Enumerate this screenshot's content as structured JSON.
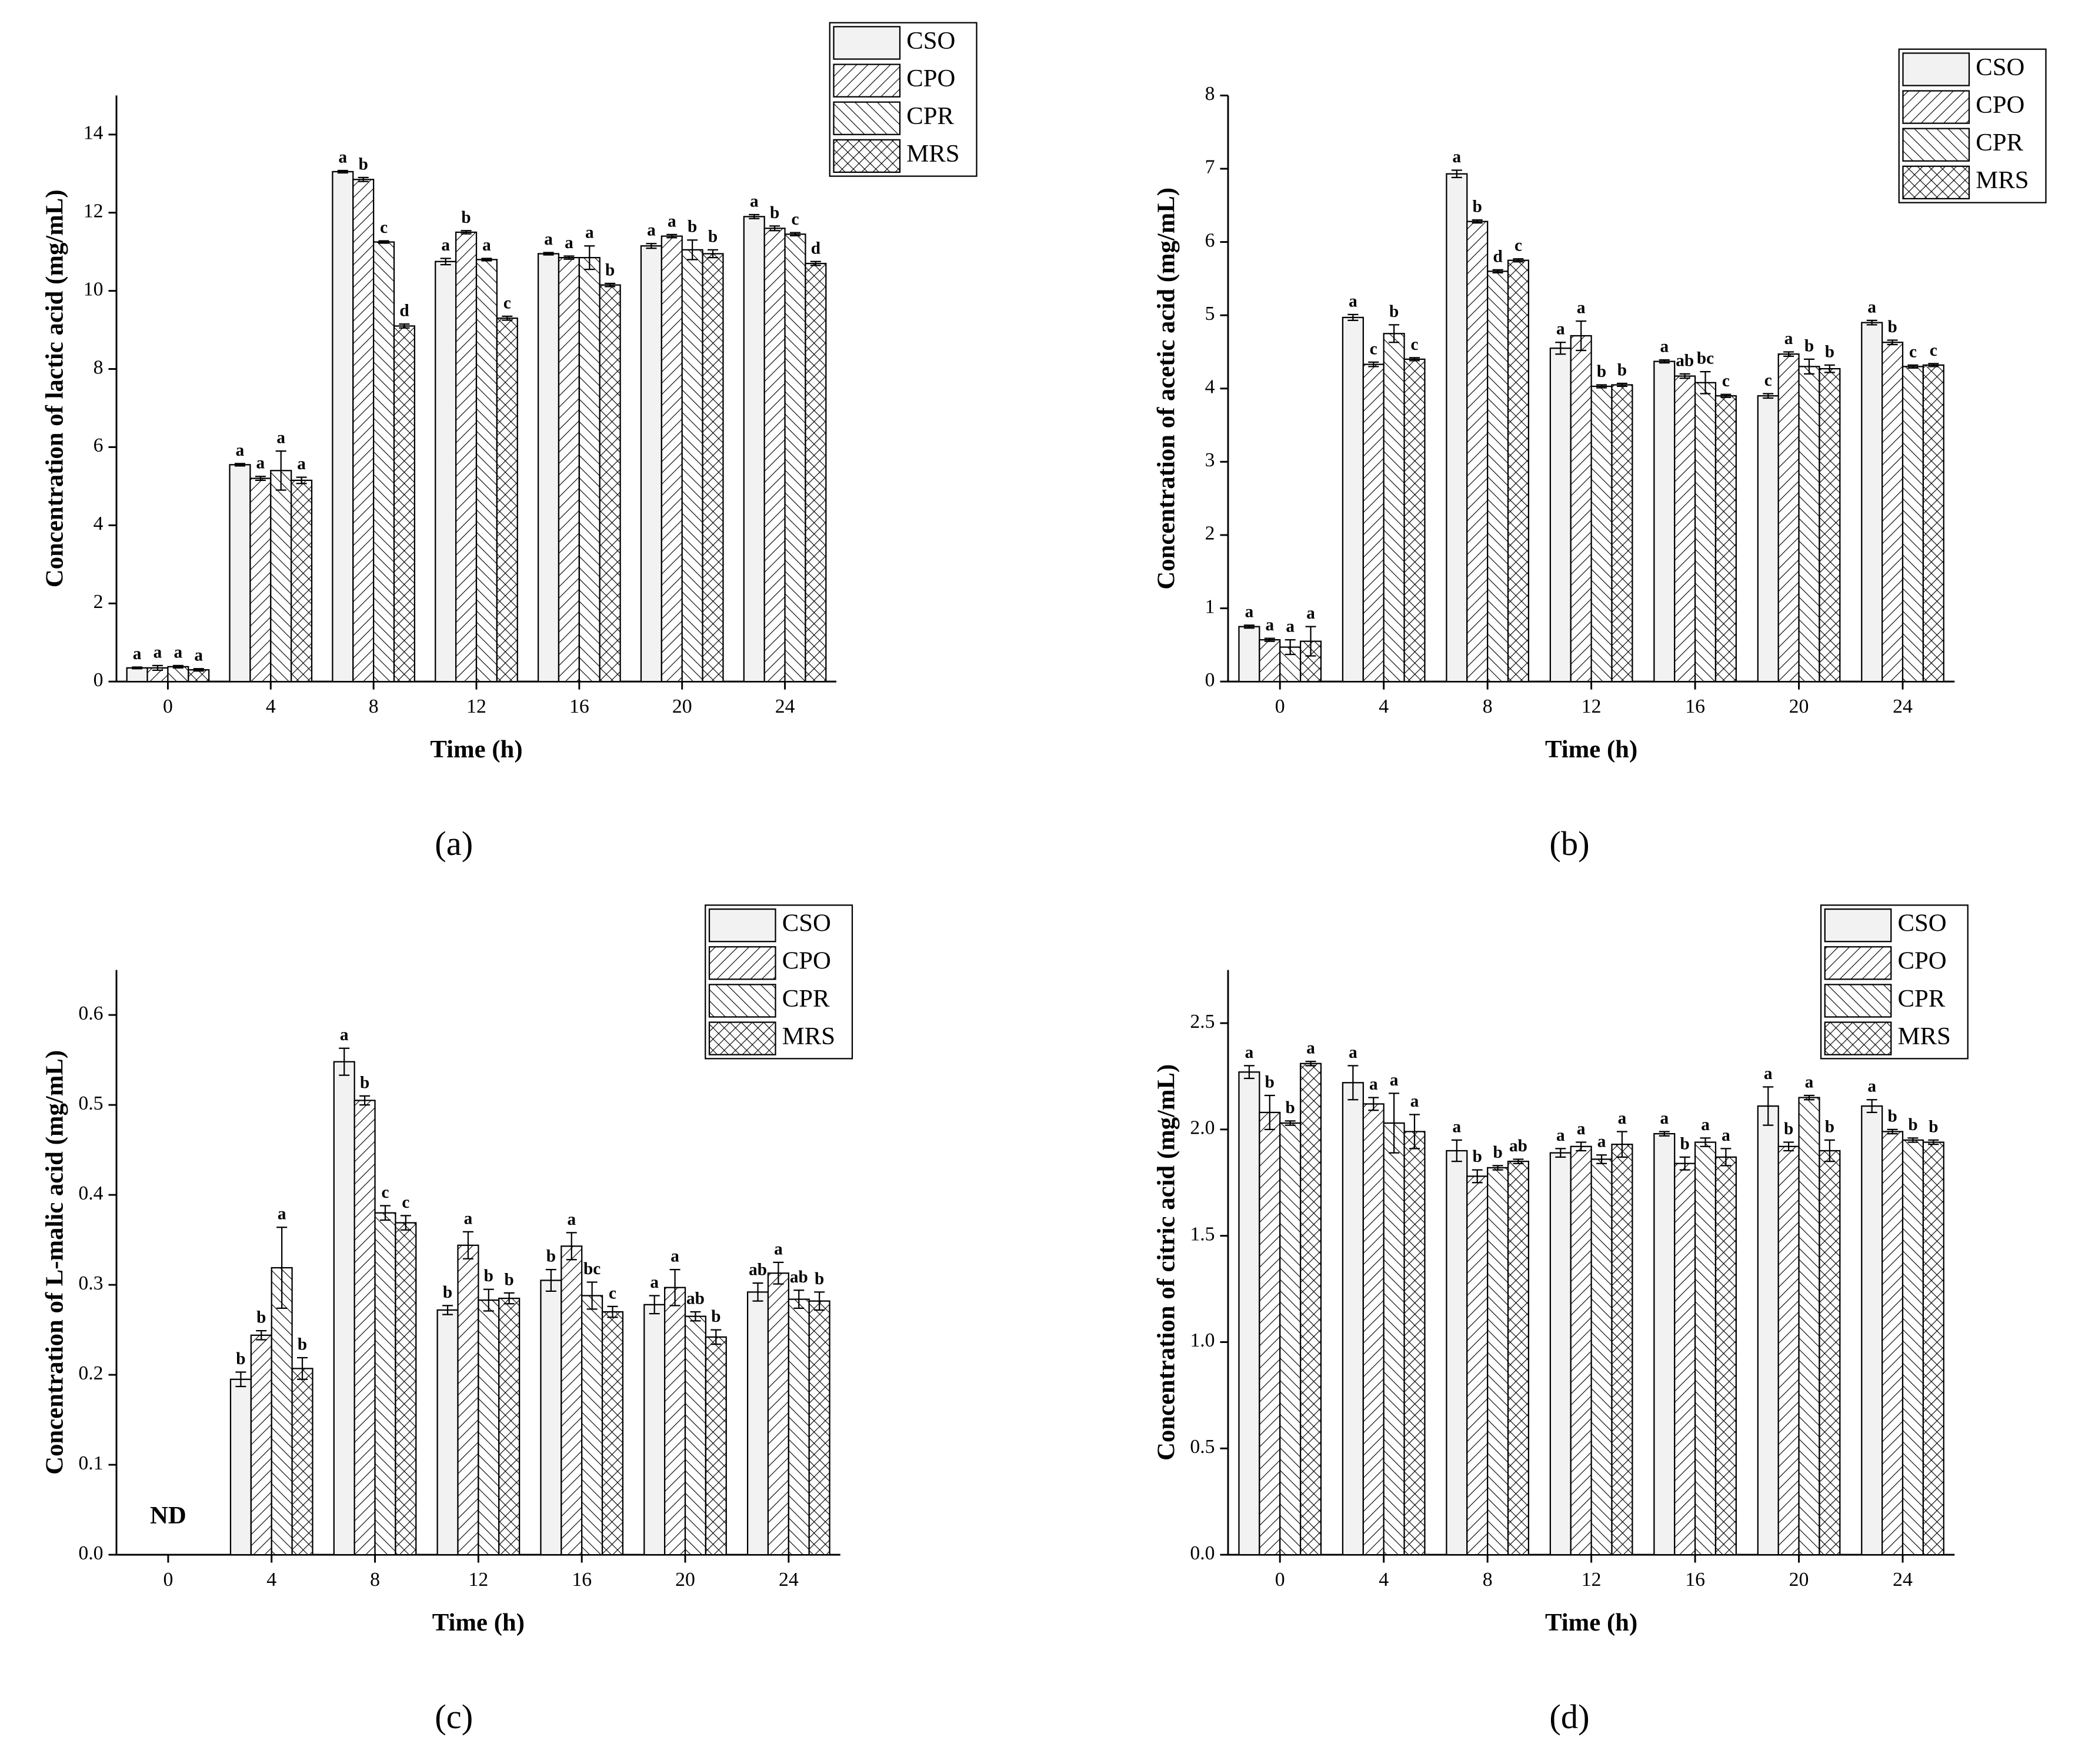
{
  "chart_data": [
    {
      "type": "bar",
      "caption": "(a)",
      "xlabel": "Time (h)",
      "ylabel": "Concentration of lactic acid (mg/mL)",
      "categories": [
        "0",
        "4",
        "8",
        "12",
        "16",
        "20",
        "24"
      ],
      "ylim": [
        0,
        15
      ],
      "yticks": [
        0,
        2,
        4,
        6,
        8,
        10,
        12,
        14
      ],
      "legend": "upper right",
      "series": [
        {
          "name": "CSO",
          "pattern": "plain",
          "color": "#f2f2f2",
          "values": [
            0.35,
            5.55,
            13.05,
            10.75,
            10.95,
            11.15,
            11.9
          ],
          "errors": [
            0.02,
            0.03,
            0.03,
            0.08,
            0.03,
            0.06,
            0.05
          ],
          "letters": [
            "a",
            "a",
            "a",
            "a",
            "a",
            "a",
            "a"
          ]
        },
        {
          "name": "CPO",
          "pattern": "forward",
          "color": "#ffffff",
          "values": [
            0.35,
            5.2,
            12.85,
            11.5,
            10.85,
            11.4,
            11.6
          ],
          "errors": [
            0.06,
            0.05,
            0.05,
            0.04,
            0.04,
            0.04,
            0.06
          ],
          "letters": [
            "a",
            "a",
            "b",
            "b",
            "a",
            "a",
            "b"
          ]
        },
        {
          "name": "CPR",
          "pattern": "backward",
          "color": "#ffffff",
          "values": [
            0.38,
            5.4,
            11.25,
            10.8,
            10.85,
            11.05,
            11.45
          ],
          "errors": [
            0.03,
            0.5,
            0.03,
            0.03,
            0.3,
            0.25,
            0.04
          ],
          "letters": [
            "a",
            "a",
            "c",
            "a",
            "a",
            "b",
            "c"
          ]
        },
        {
          "name": "MRS",
          "pattern": "cross",
          "color": "#ffffff",
          "values": [
            0.3,
            5.15,
            9.1,
            9.3,
            10.15,
            10.95,
            10.7
          ],
          "errors": [
            0.03,
            0.08,
            0.05,
            0.05,
            0.04,
            0.1,
            0.05
          ],
          "letters": [
            "a",
            "a",
            "d",
            "c",
            "b",
            "b",
            "d"
          ]
        }
      ]
    },
    {
      "type": "bar",
      "caption": "(b)",
      "xlabel": "Time (h)",
      "ylabel": "Concentration of acetic acid (mg/mL)",
      "categories": [
        "0",
        "4",
        "8",
        "12",
        "16",
        "20",
        "24"
      ],
      "ylim": [
        0,
        8
      ],
      "yticks": [
        0,
        1,
        2,
        3,
        4,
        5,
        6,
        7,
        8
      ],
      "legend": "upper right",
      "series": [
        {
          "name": "CSO",
          "pattern": "plain",
          "color": "#f2f2f2",
          "values": [
            0.75,
            4.97,
            6.93,
            4.55,
            4.37,
            3.9,
            4.9
          ],
          "errors": [
            0.02,
            0.04,
            0.05,
            0.08,
            0.02,
            0.03,
            0.03
          ],
          "letters": [
            "a",
            "a",
            "a",
            "a",
            "a",
            "c",
            "a"
          ]
        },
        {
          "name": "CPO",
          "pattern": "forward",
          "color": "#ffffff",
          "values": [
            0.57,
            4.33,
            6.28,
            4.72,
            4.17,
            4.47,
            4.63
          ],
          "errors": [
            0.02,
            0.03,
            0.02,
            0.2,
            0.03,
            0.03,
            0.03
          ],
          "letters": [
            "a",
            "c",
            "b",
            "a",
            "ab",
            "a",
            "b"
          ]
        },
        {
          "name": "CPR",
          "pattern": "backward",
          "color": "#ffffff",
          "values": [
            0.47,
            4.75,
            5.6,
            4.03,
            4.08,
            4.3,
            4.3
          ],
          "errors": [
            0.1,
            0.12,
            0.02,
            0.02,
            0.15,
            0.1,
            0.02
          ],
          "letters": [
            "a",
            "b",
            "d",
            "b",
            "bc",
            "b",
            "c"
          ]
        },
        {
          "name": "MRS",
          "pattern": "cross",
          "color": "#ffffff",
          "values": [
            0.55,
            4.4,
            5.75,
            4.05,
            3.9,
            4.27,
            4.32
          ],
          "errors": [
            0.2,
            0.02,
            0.02,
            0.02,
            0.02,
            0.05,
            0.02
          ],
          "letters": [
            "a",
            "c",
            "c",
            "b",
            "c",
            "b",
            "c"
          ]
        }
      ]
    },
    {
      "type": "bar",
      "caption": "(c)",
      "xlabel": "Time (h)",
      "ylabel": "Concentration of L-malic acid (mg/mL)",
      "annotation": "ND",
      "categories": [
        "0",
        "4",
        "8",
        "12",
        "16",
        "20",
        "24"
      ],
      "ylim": [
        0,
        0.65
      ],
      "yticks": [
        {
          "value": 0,
          "label": "0.0"
        },
        0.1,
        0.2,
        0.3,
        0.4,
        0.5,
        0.6
      ],
      "legend": "upper right",
      "series": [
        {
          "name": "CSO",
          "pattern": "plain",
          "color": "#f2f2f2",
          "values": [
            null,
            0.195,
            0.548,
            0.272,
            0.305,
            0.278,
            0.292
          ],
          "errors": [
            null,
            0.008,
            0.015,
            0.005,
            0.012,
            0.01,
            0.01
          ],
          "letters": [
            null,
            "b",
            "a",
            "b",
            "b",
            "a",
            "ab"
          ]
        },
        {
          "name": "CPO",
          "pattern": "forward",
          "color": "#ffffff",
          "values": [
            null,
            0.244,
            0.505,
            0.344,
            0.343,
            0.297,
            0.313
          ],
          "errors": [
            null,
            0.005,
            0.005,
            0.015,
            0.015,
            0.02,
            0.012
          ],
          "letters": [
            null,
            "b",
            "b",
            "a",
            "a",
            "a",
            "a"
          ]
        },
        {
          "name": "CPR",
          "pattern": "backward",
          "color": "#ffffff",
          "values": [
            null,
            0.319,
            0.38,
            0.283,
            0.288,
            0.265,
            0.284
          ],
          "errors": [
            null,
            0.045,
            0.008,
            0.012,
            0.015,
            0.005,
            0.01
          ],
          "letters": [
            null,
            "a",
            "c",
            "b",
            "bc",
            "ab",
            "ab"
          ]
        },
        {
          "name": "MRS",
          "pattern": "cross",
          "color": "#ffffff",
          "values": [
            null,
            0.207,
            0.369,
            0.285,
            0.27,
            0.242,
            0.282
          ],
          "errors": [
            null,
            0.012,
            0.008,
            0.006,
            0.006,
            0.008,
            0.01
          ],
          "letters": [
            null,
            "b",
            "c",
            "b",
            "c",
            "b",
            "b"
          ]
        }
      ]
    },
    {
      "type": "bar",
      "caption": "(d)",
      "xlabel": "Time (h)",
      "ylabel": "Concentration of citric acid (mg/mL)",
      "categories": [
        "0",
        "4",
        "8",
        "12",
        "16",
        "20",
        "24"
      ],
      "ylim": [
        0,
        2.75
      ],
      "yticks": [
        {
          "value": 0,
          "label": "0.0"
        },
        0.5,
        {
          "value": 1,
          "label": "1.0"
        },
        1.5,
        {
          "value": 2,
          "label": "2.0"
        },
        2.5
      ],
      "legend": "upper right",
      "series": [
        {
          "name": "CSO",
          "pattern": "plain",
          "color": "#f2f2f2",
          "values": [
            2.27,
            2.22,
            1.9,
            1.89,
            1.98,
            2.11,
            2.11
          ],
          "errors": [
            0.03,
            0.08,
            0.05,
            0.02,
            0.01,
            0.09,
            0.03
          ],
          "letters": [
            "a",
            "a",
            "a",
            "a",
            "a",
            "a",
            "a"
          ]
        },
        {
          "name": "CPO",
          "pattern": "forward",
          "color": "#ffffff",
          "values": [
            2.08,
            2.12,
            1.78,
            1.92,
            1.84,
            1.92,
            1.99
          ],
          "errors": [
            0.08,
            0.03,
            0.03,
            0.02,
            0.03,
            0.02,
            0.01
          ],
          "letters": [
            "b",
            "a",
            "b",
            "a",
            "b",
            "b",
            "b"
          ]
        },
        {
          "name": "CPR",
          "pattern": "backward",
          "color": "#ffffff",
          "values": [
            2.03,
            2.03,
            1.82,
            1.86,
            1.94,
            2.15,
            1.95
          ],
          "errors": [
            0.01,
            0.14,
            0.01,
            0.02,
            0.02,
            0.01,
            0.01
          ],
          "letters": [
            "b",
            "a",
            "b",
            "a",
            "a",
            "a",
            "b"
          ]
        },
        {
          "name": "MRS",
          "pattern": "cross",
          "color": "#ffffff",
          "values": [
            2.31,
            1.99,
            1.85,
            1.93,
            1.87,
            1.9,
            1.94
          ],
          "errors": [
            0.01,
            0.08,
            0.01,
            0.06,
            0.04,
            0.05,
            0.01
          ],
          "letters": [
            "a",
            "a",
            "ab",
            "a",
            "a",
            "b",
            "b"
          ]
        }
      ]
    }
  ]
}
